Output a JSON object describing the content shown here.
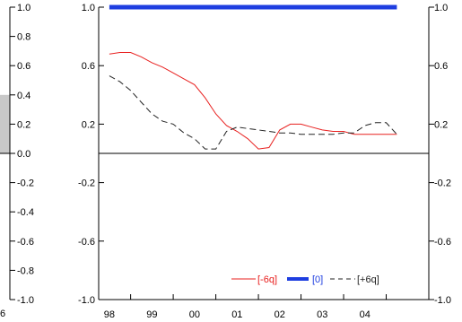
{
  "chart_data": [
    {
      "type": "bar",
      "note_visible": "partially visible background chart at left edge",
      "ylim": [
        -1.0,
        1.0
      ],
      "y_ticks": [
        "1.0",
        "0.8",
        "0.6",
        "0.4",
        "0.2",
        "0.0",
        "-0.2",
        "-0.4",
        "-0.6",
        "-0.8",
        "-1.0"
      ],
      "x_tick_labels": [
        "6"
      ],
      "bars": [
        {
          "from": 0.0,
          "to": 0.4
        }
      ]
    },
    {
      "type": "line",
      "title": "",
      "xlabel": "",
      "ylabel": "",
      "xlim": [
        1997.75,
        2005.5
      ],
      "ylim": [
        -1.0,
        1.0
      ],
      "y_ticks_left": [
        "1.0",
        "0.6",
        "0.2",
        "-0.2",
        "-0.6",
        "-1.0"
      ],
      "y_ticks_right": [
        "1.0",
        "0.6",
        "0.2",
        "-0.2",
        "-0.6",
        "-1.0"
      ],
      "x_ticks": [
        {
          "label": "98",
          "x": 1998.0
        },
        {
          "label": "99",
          "x": 1999.0
        },
        {
          "label": "00",
          "x": 2000.0
        },
        {
          "label": "01",
          "x": 2001.0
        },
        {
          "label": "02",
          "x": 2002.0
        },
        {
          "label": "03",
          "x": 2003.0
        },
        {
          "label": "04",
          "x": 2004.0
        }
      ],
      "zero_line": true,
      "legend_position": "bottom-right",
      "series": [
        {
          "name": "[-6q]",
          "color": "#e8201f",
          "style": "solid",
          "x": [
            1998.0,
            1998.25,
            1998.5,
            1998.75,
            1999.0,
            1999.25,
            1999.5,
            1999.75,
            2000.0,
            2000.25,
            2000.5,
            2000.75,
            2001.0,
            2001.25,
            2001.5,
            2001.75,
            2002.0,
            2002.25,
            2002.5,
            2002.75,
            2003.0,
            2003.25,
            2003.5,
            2003.75,
            2004.0,
            2004.25,
            2004.5,
            2004.75
          ],
          "y": [
            0.68,
            0.69,
            0.69,
            0.66,
            0.62,
            0.59,
            0.55,
            0.51,
            0.47,
            0.38,
            0.27,
            0.19,
            0.15,
            0.1,
            0.03,
            0.04,
            0.16,
            0.2,
            0.2,
            0.18,
            0.16,
            0.15,
            0.15,
            0.13,
            0.13,
            0.13,
            0.13,
            0.13
          ]
        },
        {
          "name": "[0]",
          "color": "#1e3ee0",
          "style": "thick",
          "x": [
            1998.0,
            2004.75
          ],
          "y": [
            1.0,
            1.0
          ]
        },
        {
          "name": "[+6q]",
          "color": "#222222",
          "style": "dashed",
          "x": [
            1998.0,
            1998.25,
            1998.5,
            1998.75,
            1999.0,
            1999.25,
            1999.5,
            1999.75,
            2000.0,
            2000.25,
            2000.5,
            2000.75,
            2001.0,
            2001.25,
            2001.5,
            2001.75,
            2002.0,
            2002.25,
            2002.5,
            2002.75,
            2003.0,
            2003.25,
            2003.5,
            2003.75,
            2004.0,
            2004.25,
            2004.5,
            2004.75
          ],
          "y": [
            0.53,
            0.49,
            0.43,
            0.35,
            0.27,
            0.22,
            0.2,
            0.14,
            0.1,
            0.03,
            0.03,
            0.15,
            0.18,
            0.17,
            0.16,
            0.15,
            0.14,
            0.14,
            0.13,
            0.13,
            0.13,
            0.13,
            0.14,
            0.14,
            0.19,
            0.21,
            0.21,
            0.13
          ]
        }
      ]
    }
  ]
}
